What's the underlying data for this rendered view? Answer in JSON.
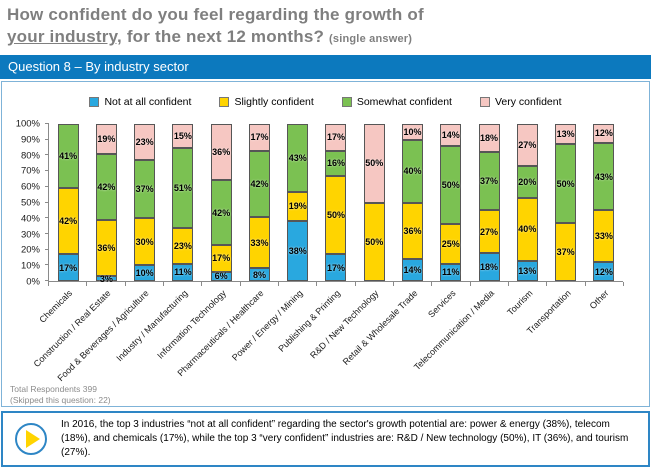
{
  "title": {
    "line1": "How confident do you feel regarding the growth of",
    "underlined": "your industry,",
    "rest": " for the next 12 months? ",
    "suffix": "(single answer)"
  },
  "banner": {
    "label": "Question 8 – By industry sector"
  },
  "chart_data": {
    "type": "bar",
    "stacked": true,
    "title": "",
    "xlabel": "",
    "ylabel": "",
    "ylim": [
      0,
      100
    ],
    "grid": false,
    "legend_position": "top",
    "y_ticks": [
      "0%",
      "10%",
      "20%",
      "30%",
      "40%",
      "50%",
      "60%",
      "70%",
      "80%",
      "90%",
      "100%"
    ],
    "categories": [
      "Chemicals",
      "Construction / Real Estate",
      "Food & Beverages / Agriculture",
      "Industry / Manufacturing",
      "Information Technology",
      "Pharmaceuticals / Healthcare",
      "Power / Energy / Mining",
      "Publishing & Printing",
      "R&D / New Technology",
      "Retail & Wholesale Trade",
      "Services",
      "Telecommunication / Media",
      "Tourism",
      "Transportation",
      "Other"
    ],
    "series": [
      {
        "name": "Not at all confident",
        "color": "#29a8df",
        "values": [
          17,
          3,
          10,
          11,
          6,
          8,
          38,
          17,
          0,
          14,
          11,
          18,
          13,
          0,
          12
        ]
      },
      {
        "name": "Slightly confident",
        "color": "#ffd400",
        "values": [
          42,
          36,
          30,
          23,
          17,
          33,
          19,
          50,
          50,
          36,
          25,
          27,
          40,
          37,
          33
        ]
      },
      {
        "name": "Somewhat confident",
        "color": "#7bc152",
        "values": [
          41,
          42,
          37,
          51,
          42,
          42,
          43,
          16,
          0,
          40,
          50,
          37,
          20,
          50,
          43
        ]
      },
      {
        "name": "Very confident",
        "color": "#f6c7c2",
        "values": [
          0,
          19,
          23,
          15,
          36,
          17,
          0,
          17,
          50,
          10,
          14,
          18,
          27,
          13,
          12
        ]
      }
    ]
  },
  "footer": {
    "line1": "Total Respondents 399",
    "line2": "(Skipped this question: 22)"
  },
  "note": {
    "text": "In 2016, the top 3 industries “not at all confident” regarding the sector's growth potential are: power & energy (38%), telecom (18%), and chemicals (17%), while the top 3 “very confident” industries are: R&D / New technology (50%), IT (36%), and tourism (27%)."
  },
  "colors": {
    "banner": "#0c79be",
    "title_text": "#7f7f7f",
    "box_border": "#7fb3d8",
    "note_border": "#2e86c5",
    "axis": "#8a8a8a"
  }
}
